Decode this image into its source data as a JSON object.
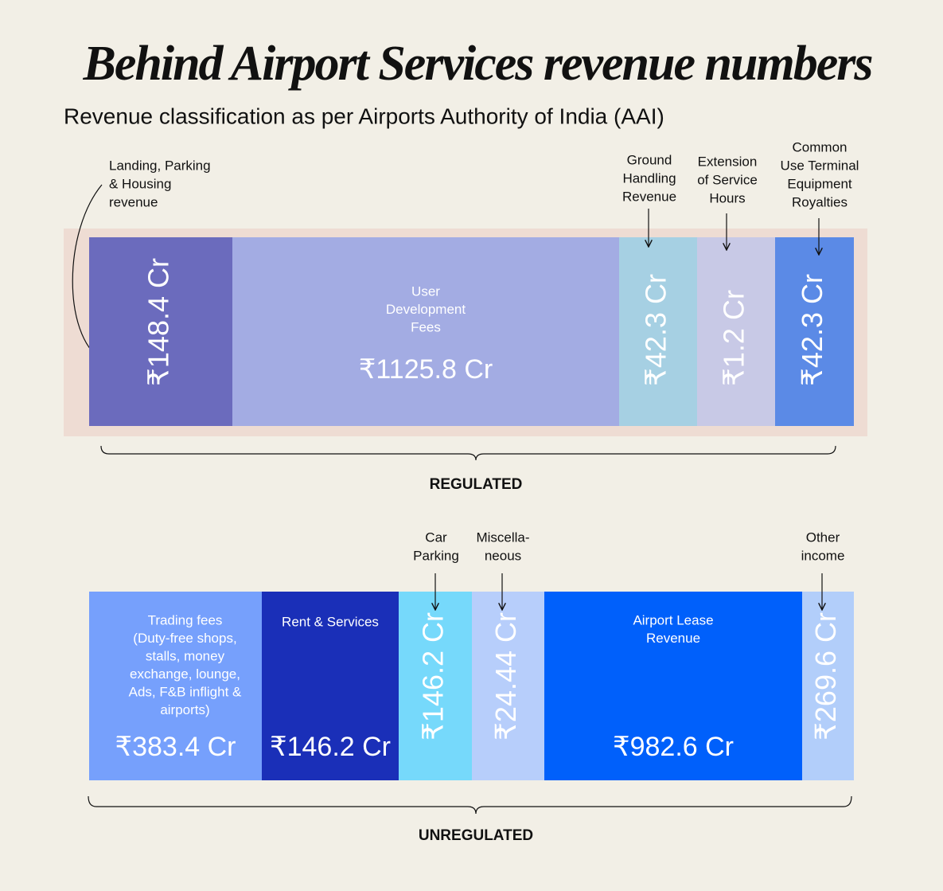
{
  "title": "Behind Airport Services revenue numbers",
  "subtitle": "Revenue classification as per Airports Authority of India (AAI)",
  "sections": [
    {
      "name": "REGULATED",
      "segments": [
        {
          "label": [
            "Landing, Parking",
            "& Housing",
            "revenue"
          ],
          "amount": "₹148.4 Cr"
        },
        {
          "label": [
            "User",
            "Development",
            "Fees"
          ],
          "amount": "₹1125.8 Cr"
        },
        {
          "label": [
            "Ground",
            "Handling",
            "Revenue"
          ],
          "amount": "₹42.3 Cr"
        },
        {
          "label": [
            "Extension",
            "of Service",
            "Hours"
          ],
          "amount": "₹1.2 Cr"
        },
        {
          "label": [
            "Common",
            "Use Terminal",
            "Equipment",
            "Royalties"
          ],
          "amount": "₹42.3 Cr"
        }
      ]
    },
    {
      "name": "UNREGULATED",
      "segments": [
        {
          "label": [
            "Trading fees",
            "(Duty-free shops,",
            "stalls, money",
            "exchange, lounge,",
            "Ads, F&B inflight &",
            "airports)"
          ],
          "amount": "₹383.4 Cr"
        },
        {
          "label": [
            "Rent & Services"
          ],
          "amount": "₹146.2 Cr"
        },
        {
          "label": [
            "Car",
            "Parking"
          ],
          "amount": "₹146.2 Cr"
        },
        {
          "label": [
            "Miscella-",
            "neous"
          ],
          "amount": "₹24.44 Cr"
        },
        {
          "label": [
            "Airport Lease",
            "Revenue"
          ],
          "amount": "₹982.6 Cr"
        },
        {
          "label": [
            "Other",
            "income"
          ],
          "amount": "₹269.6 Cr"
        }
      ]
    }
  ]
}
